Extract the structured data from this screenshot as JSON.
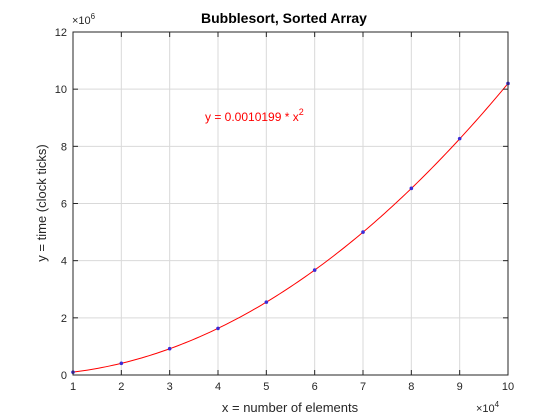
{
  "colors": {
    "background": "#ffffff",
    "axes": "#262626",
    "grid": "#d9d9d9",
    "fit_line": "#ff0000",
    "markers": "#3b2bd6",
    "equation": "#ff0000"
  },
  "chart_data": {
    "type": "scatter",
    "title": "Bubblesort, Sorted Array",
    "xlabel": "x = number of elements",
    "ylabel": "y = time (clock ticks)",
    "xlim": [
      10000,
      100000
    ],
    "ylim": [
      0,
      12000000
    ],
    "x_multiplier_label": "×10",
    "x_multiplier_exp": "4",
    "y_multiplier_label": "×10",
    "y_multiplier_exp": "6",
    "xticks": [
      10000,
      20000,
      30000,
      40000,
      50000,
      60000,
      70000,
      80000,
      90000,
      100000
    ],
    "xtick_labels": [
      "1",
      "2",
      "3",
      "4",
      "5",
      "6",
      "7",
      "8",
      "9",
      "10"
    ],
    "yticks": [
      0,
      2000000,
      4000000,
      6000000,
      8000000,
      10000000,
      12000000
    ],
    "ytick_labels": [
      "0",
      "2",
      "4",
      "6",
      "8",
      "10",
      "12"
    ],
    "grid": true,
    "series": [
      {
        "type": "scatter",
        "x": [
          10000,
          20000,
          30000,
          40000,
          50000,
          60000,
          70000,
          80000,
          90000,
          100000
        ],
        "y": [
          100000,
          410000,
          920000,
          1630000,
          2550000,
          3670000,
          5000000,
          6530000,
          8270000,
          10200000
        ]
      },
      {
        "type": "line",
        "coefficient": 0.0010199,
        "equation_text": "y = 0.0010199 * x",
        "equation_exp": "2"
      }
    ]
  }
}
